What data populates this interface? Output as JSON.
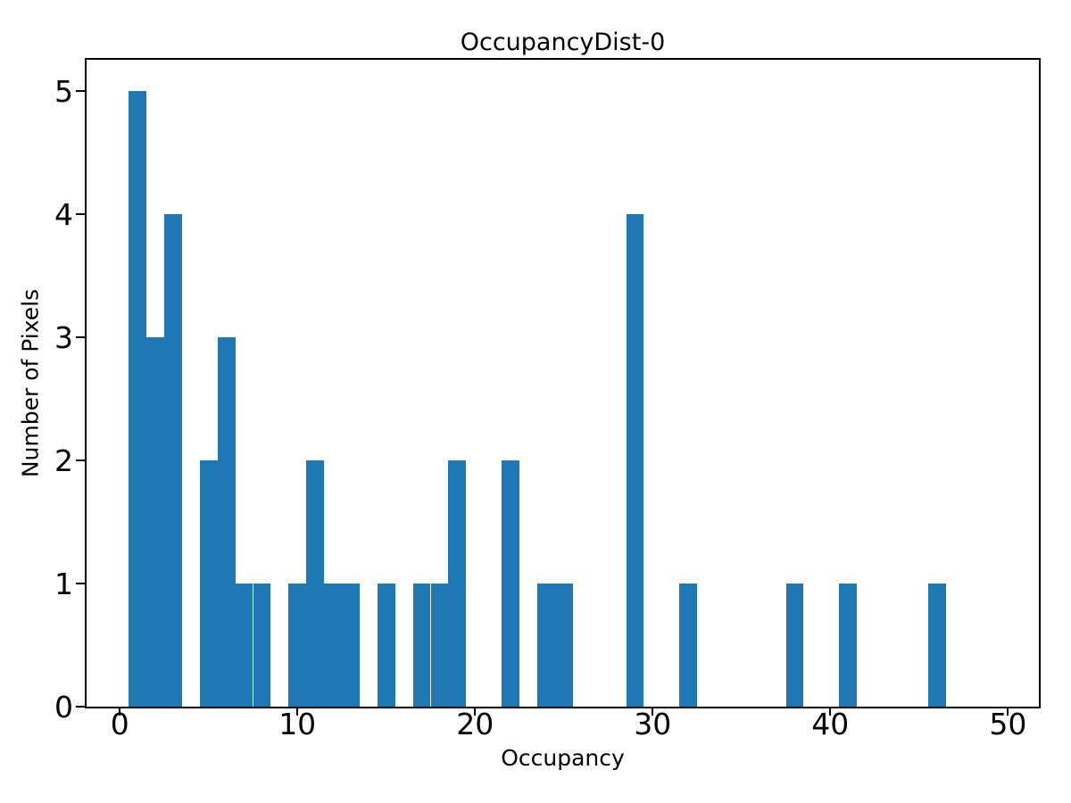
{
  "figure": {
    "background_color": "#ffffff",
    "text_color": "#000000",
    "spine_color": "#000000"
  },
  "chart_data": {
    "type": "bar",
    "subtype": "histogram",
    "title": "OccupancyDist-0",
    "xlabel": "Occupancy",
    "ylabel": "Number of Pixels",
    "bar_color": "#1f77b4",
    "bin_width": 1,
    "bars": [
      {
        "x": 1,
        "count": 5
      },
      {
        "x": 2,
        "count": 3
      },
      {
        "x": 3,
        "count": 4
      },
      {
        "x": 5,
        "count": 2
      },
      {
        "x": 6,
        "count": 3
      },
      {
        "x": 7,
        "count": 1
      },
      {
        "x": 8,
        "count": 1
      },
      {
        "x": 10,
        "count": 1
      },
      {
        "x": 11,
        "count": 2
      },
      {
        "x": 12,
        "count": 1
      },
      {
        "x": 13,
        "count": 1
      },
      {
        "x": 15,
        "count": 1
      },
      {
        "x": 17,
        "count": 1
      },
      {
        "x": 18,
        "count": 1
      },
      {
        "x": 19,
        "count": 2
      },
      {
        "x": 22,
        "count": 2
      },
      {
        "x": 24,
        "count": 1
      },
      {
        "x": 25,
        "count": 1
      },
      {
        "x": 29,
        "count": 4
      },
      {
        "x": 32,
        "count": 1
      },
      {
        "x": 38,
        "count": 1
      },
      {
        "x": 41,
        "count": 1
      },
      {
        "x": 46,
        "count": 1
      }
    ],
    "xticks": [
      0,
      10,
      20,
      30,
      40,
      50
    ],
    "yticks": [
      0,
      1,
      2,
      3,
      4,
      5
    ],
    "xlim": [
      -1.87,
      51.74
    ],
    "ylim": [
      0,
      5.25
    ],
    "grid": false,
    "legend_position": "none"
  }
}
